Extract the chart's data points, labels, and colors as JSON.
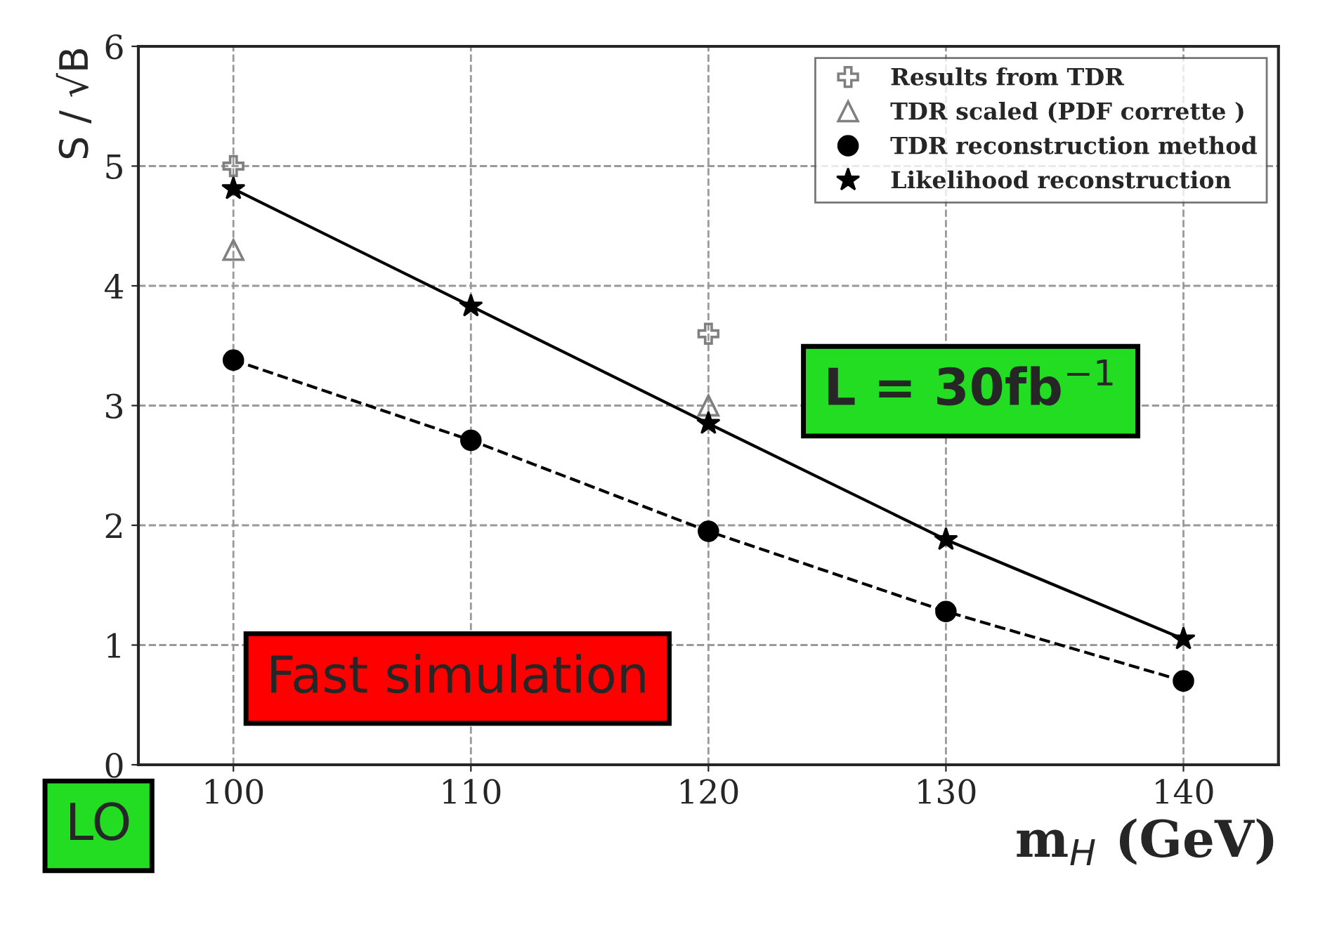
{
  "chart_data": {
    "type": "scatter",
    "xlabel": "m$_{H}$ (GeV)",
    "ylabel": "S / √B",
    "x": [
      100,
      110,
      120,
      130,
      140
    ],
    "series": [
      {
        "name": "Results from TDR",
        "color": "#808080",
        "marker": "cross",
        "values": [
          5.0,
          null,
          3.6,
          null,
          null
        ]
      },
      {
        "name": "TDR scaled (PDF corrette )",
        "color": "#808080",
        "marker": "triangle",
        "values": [
          4.3,
          null,
          3.0,
          null,
          null
        ]
      },
      {
        "name": "TDR reconstruction method",
        "type": "line",
        "color": "#000000",
        "marker": "circle",
        "line_style": "dashed",
        "values": [
          3.38,
          2.71,
          1.95,
          1.28,
          0.7
        ]
      },
      {
        "name": "Likelihood reconstruction",
        "type": "line",
        "color": "#000000",
        "marker": "star",
        "line_style": "solid",
        "values": [
          4.81,
          3.83,
          2.85,
          1.88,
          1.05
        ]
      }
    ],
    "xlim": [
      96,
      144
    ],
    "ylim": [
      0,
      6
    ],
    "xticks": [
      100,
      110,
      120,
      130,
      140
    ],
    "yticks": [
      0,
      1,
      2,
      3,
      4,
      5,
      6
    ],
    "grid": true,
    "legend": "top right",
    "annotations": [
      "L = 30fb$^{−1}$",
      "Fast simulation",
      "LO"
    ]
  }
}
